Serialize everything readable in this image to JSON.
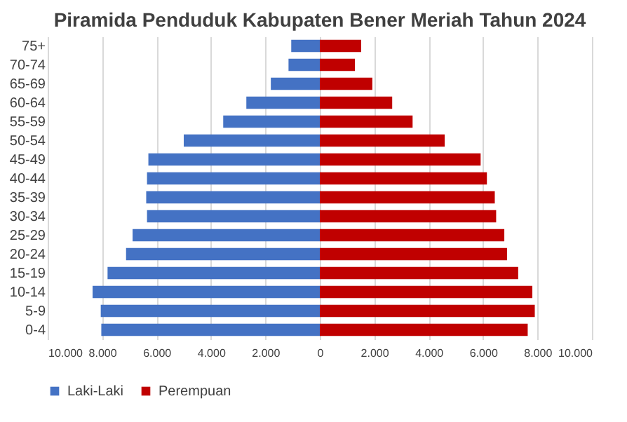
{
  "chart_data": {
    "type": "bar",
    "title": "Piramida Penduduk Kabupaten Bener Meriah Tahun 2024",
    "orientation": "horizontal",
    "stacked": true,
    "categories": [
      "75+",
      "70-74",
      "65-69",
      "60-64",
      "55-59",
      "50-54",
      "45-49",
      "40-44",
      "35-39",
      "30-34",
      "25-29",
      "20-24",
      "15-19",
      "10-14",
      "5-9",
      "0-4"
    ],
    "series": [
      {
        "name": "Laki-Laki",
        "color": "#4472c4",
        "values": [
          -1050,
          -1150,
          -1800,
          -2700,
          -3550,
          -5000,
          -6300,
          -6350,
          -6380,
          -6350,
          -6880,
          -7120,
          -7800,
          -8350,
          -8050,
          -8030
        ]
      },
      {
        "name": "Perempuan",
        "color": "#c00000",
        "values": [
          1520,
          1290,
          1930,
          2660,
          3410,
          4590,
          5910,
          6140,
          6430,
          6480,
          6780,
          6880,
          7290,
          7810,
          7900,
          7640
        ]
      }
    ],
    "xlim": [
      -10000,
      10000
    ],
    "xticks": [
      {
        "value": -10000,
        "label": "10.000"
      },
      {
        "value": -8000,
        "label": "8.000"
      },
      {
        "value": -6000,
        "label": "6.000"
      },
      {
        "value": -4000,
        "label": "4.000"
      },
      {
        "value": -2000,
        "label": "2.000"
      },
      0,
      {
        "value": 2000,
        "label": "2.000"
      },
      {
        "value": 4000,
        "label": "4.000"
      },
      {
        "value": 6000,
        "label": "6.000"
      },
      {
        "value": 8000,
        "label": "8.000"
      },
      {
        "value": 10000,
        "label": "10.000"
      }
    ],
    "grid": "x",
    "legend": "bottom"
  }
}
